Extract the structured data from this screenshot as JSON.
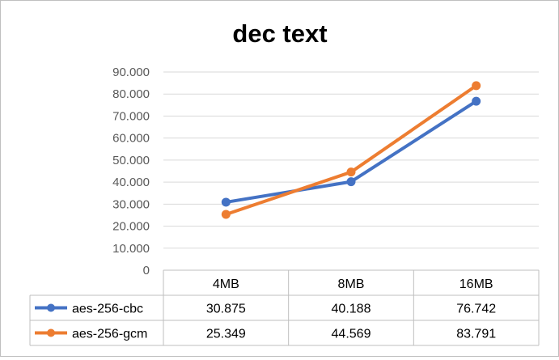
{
  "chart_data": {
    "type": "line",
    "title": "dec text",
    "xlabel": "",
    "ylabel": "",
    "categories": [
      "4MB",
      "8MB",
      "16MB"
    ],
    "ylim": [
      0,
      90
    ],
    "yticks": [
      0,
      10,
      20,
      30,
      40,
      50,
      60,
      70,
      80,
      90
    ],
    "ytick_labels": [
      "0",
      "10.000",
      "20.000",
      "30.000",
      "40.000",
      "50.000",
      "60.000",
      "70.000",
      "80.000",
      "90.000"
    ],
    "grid": true,
    "legend": "data-table",
    "series": [
      {
        "name": "aes-256-cbc",
        "color": "#4472c4",
        "values": [
          30.875,
          40.188,
          76.742
        ],
        "labels": [
          "30.875",
          "40.188",
          "76.742"
        ]
      },
      {
        "name": "aes-256-gcm",
        "color": "#ed7d31",
        "values": [
          25.349,
          44.569,
          83.791
        ],
        "labels": [
          "25.349",
          "44.569",
          "83.791"
        ]
      }
    ]
  }
}
